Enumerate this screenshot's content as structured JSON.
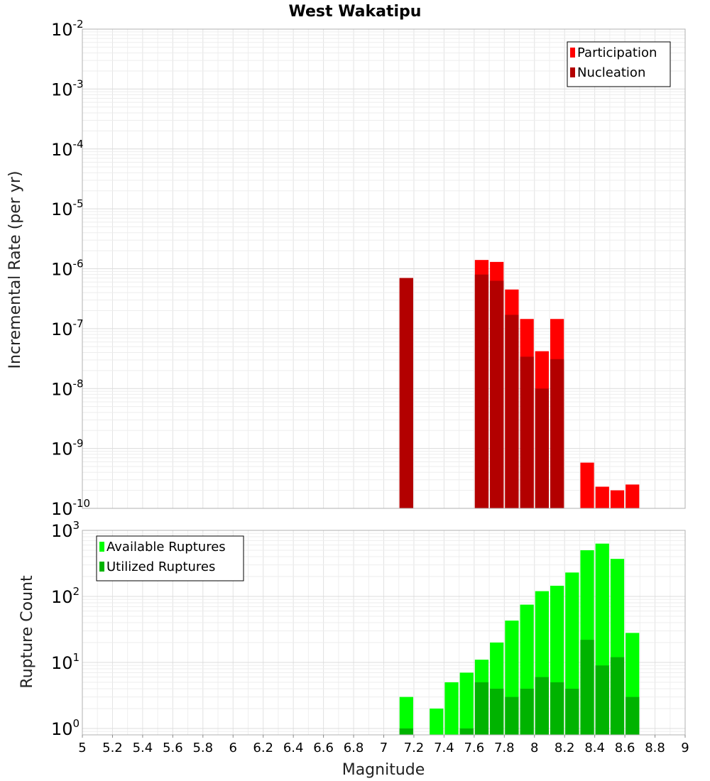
{
  "chart_data": {
    "title": "West Wakatipu",
    "xlabel": "Magnitude",
    "xlim": [
      5,
      9
    ],
    "xticks": [
      "5",
      "5.2",
      "5.4",
      "5.6",
      "5.8",
      "6",
      "6.2",
      "6.4",
      "6.6",
      "6.8",
      "7",
      "7.2",
      "7.4",
      "7.6",
      "7.8",
      "8",
      "8.2",
      "8.4",
      "8.6",
      "8.8",
      "9"
    ],
    "bin_width": 0.1,
    "grid": true,
    "panels": [
      {
        "type": "bar",
        "yscale": "log",
        "ylabel": "Incremental Rate (per yr)",
        "ylim": [
          1e-10,
          0.01
        ],
        "ytick_exponents": [
          "-2",
          "-3",
          "-4",
          "-5",
          "-6",
          "-7",
          "-8",
          "-9",
          "-10"
        ],
        "legend_position": "top-right",
        "series": [
          {
            "name": "Participation",
            "color": "#ff0000",
            "points": [
              {
                "x": 7.1,
                "y": 7e-07
              },
              {
                "x": 7.6,
                "y": 1.4e-06
              },
              {
                "x": 7.7,
                "y": 1.3e-06
              },
              {
                "x": 7.8,
                "y": 4.5e-07
              },
              {
                "x": 7.9,
                "y": 1.45e-07
              },
              {
                "x": 8.0,
                "y": 4.2e-08
              },
              {
                "x": 8.1,
                "y": 1.45e-07
              },
              {
                "x": 8.3,
                "y": 5.8e-10
              },
              {
                "x": 8.4,
                "y": 2.3e-10
              },
              {
                "x": 8.5,
                "y": 2e-10
              },
              {
                "x": 8.6,
                "y": 2.5e-10
              }
            ]
          },
          {
            "name": "Nucleation",
            "color": "#b30000",
            "points": [
              {
                "x": 7.1,
                "y": 7e-07
              },
              {
                "x": 7.6,
                "y": 8e-07
              },
              {
                "x": 7.7,
                "y": 6.3e-07
              },
              {
                "x": 7.8,
                "y": 1.7e-07
              },
              {
                "x": 7.9,
                "y": 3.4e-08
              },
              {
                "x": 8.0,
                "y": 1e-08
              },
              {
                "x": 8.1,
                "y": 3.1e-08
              }
            ]
          }
        ]
      },
      {
        "type": "bar",
        "yscale": "log",
        "ylabel": "Rupture Count",
        "ylim": [
          0.8,
          1000
        ],
        "ytick_exponents": [
          "3",
          "2",
          "1",
          "0"
        ],
        "legend_position": "top-left",
        "series": [
          {
            "name": "Available Ruptures",
            "color": "#00ff00",
            "points": [
              {
                "x": 7.1,
                "y": 3
              },
              {
                "x": 7.3,
                "y": 2
              },
              {
                "x": 7.4,
                "y": 5
              },
              {
                "x": 7.5,
                "y": 7
              },
              {
                "x": 7.6,
                "y": 11
              },
              {
                "x": 7.7,
                "y": 20
              },
              {
                "x": 7.8,
                "y": 43
              },
              {
                "x": 7.9,
                "y": 75
              },
              {
                "x": 8.0,
                "y": 120
              },
              {
                "x": 8.1,
                "y": 145
              },
              {
                "x": 8.2,
                "y": 230
              },
              {
                "x": 8.3,
                "y": 500
              },
              {
                "x": 8.4,
                "y": 630
              },
              {
                "x": 8.5,
                "y": 370
              },
              {
                "x": 8.6,
                "y": 28
              }
            ]
          },
          {
            "name": "Utilized Ruptures",
            "color": "#00b300",
            "points": [
              {
                "x": 7.1,
                "y": 1
              },
              {
                "x": 7.5,
                "y": 1
              },
              {
                "x": 7.6,
                "y": 5
              },
              {
                "x": 7.7,
                "y": 4
              },
              {
                "x": 7.8,
                "y": 3
              },
              {
                "x": 7.9,
                "y": 4
              },
              {
                "x": 8.0,
                "y": 6
              },
              {
                "x": 8.1,
                "y": 5
              },
              {
                "x": 8.2,
                "y": 4
              },
              {
                "x": 8.3,
                "y": 22
              },
              {
                "x": 8.4,
                "y": 9
              },
              {
                "x": 8.5,
                "y": 12
              },
              {
                "x": 8.6,
                "y": 3
              }
            ]
          }
        ]
      }
    ]
  }
}
